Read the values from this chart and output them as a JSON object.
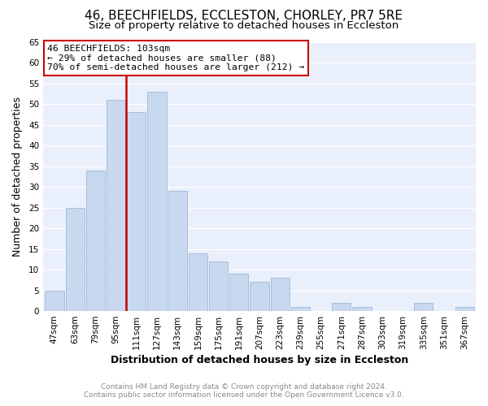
{
  "title": "46, BEECHFIELDS, ECCLESTON, CHORLEY, PR7 5RE",
  "subtitle": "Size of property relative to detached houses in Eccleston",
  "xlabel": "Distribution of detached houses by size in Eccleston",
  "ylabel": "Number of detached properties",
  "bar_labels": [
    "47sqm",
    "63sqm",
    "79sqm",
    "95sqm",
    "111sqm",
    "127sqm",
    "143sqm",
    "159sqm",
    "175sqm",
    "191sqm",
    "207sqm",
    "223sqm",
    "239sqm",
    "255sqm",
    "271sqm",
    "287sqm",
    "303sqm",
    "319sqm",
    "335sqm",
    "351sqm",
    "367sqm"
  ],
  "bar_values": [
    5,
    25,
    34,
    51,
    48,
    53,
    29,
    14,
    12,
    9,
    7,
    8,
    1,
    0,
    2,
    1,
    0,
    0,
    2,
    0,
    1
  ],
  "bar_color": "#c8d8ee",
  "bar_edge_color": "#a0b8d8",
  "vline_x": 3.5,
  "vline_color": "#cc0000",
  "ylim": [
    0,
    65
  ],
  "yticks": [
    0,
    5,
    10,
    15,
    20,
    25,
    30,
    35,
    40,
    45,
    50,
    55,
    60,
    65
  ],
  "annotation_line1": "46 BEECHFIELDS: 103sqm",
  "annotation_line2": "← 29% of detached houses are smaller (88)",
  "annotation_line3": "70% of semi-detached houses are larger (212) →",
  "annotation_box_color": "#ffffff",
  "annotation_box_edge": "#cc0000",
  "footer_line1": "Contains HM Land Registry data © Crown copyright and database right 2024.",
  "footer_line2": "Contains public sector information licensed under the Open Government Licence v3.0.",
  "bg_color": "#ffffff",
  "plot_bg_color": "#eaf0fb",
  "grid_color": "#ffffff",
  "title_fontsize": 11,
  "subtitle_fontsize": 9.5,
  "axis_label_fontsize": 9,
  "tick_fontsize": 7.5,
  "footer_fontsize": 6.5,
  "footer_color": "#888888"
}
